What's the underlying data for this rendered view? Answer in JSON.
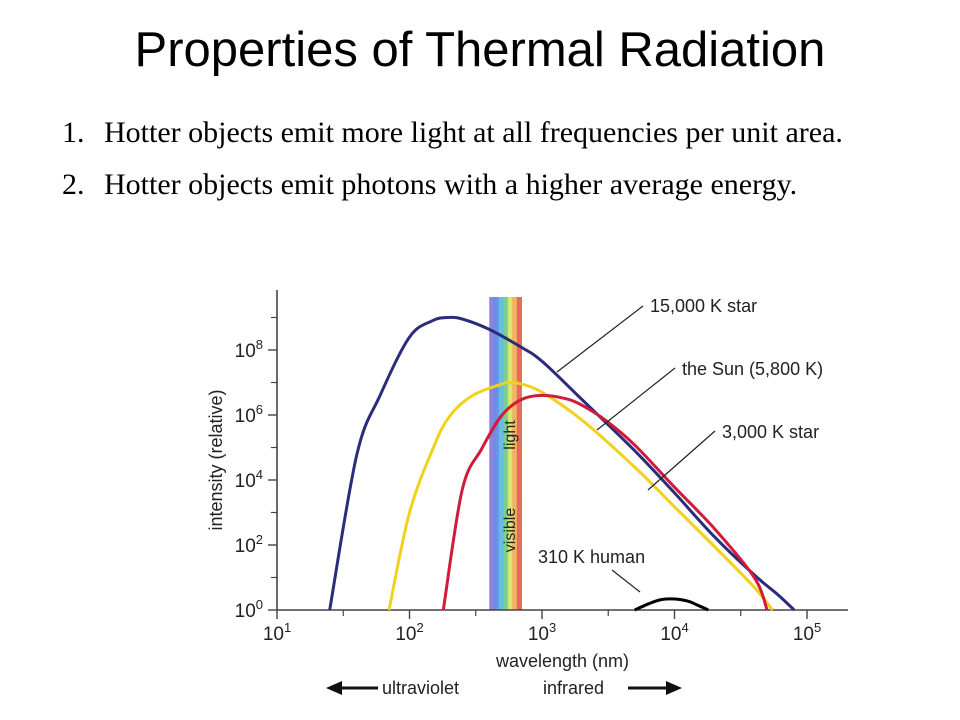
{
  "slide": {
    "title": "Properties of Thermal Radiation",
    "bullets": [
      {
        "number": "1.",
        "text": "Hotter objects emit more light at all frequencies per unit area."
      },
      {
        "number": "2.",
        "text": "Hotter objects emit photons with a higher average energy."
      }
    ]
  },
  "chart_data": {
    "type": "line",
    "xlabel": "wavelength (nm)",
    "ylabel": "intensity (relative)",
    "x_scale": "log",
    "y_scale": "log",
    "xlim": [
      10,
      150000
    ],
    "ylim": [
      1,
      10000000000
    ],
    "x_ticks": [
      {
        "base": "10",
        "exp": "1",
        "value": 10
      },
      {
        "base": "10",
        "exp": "2",
        "value": 100
      },
      {
        "base": "10",
        "exp": "3",
        "value": 1000
      },
      {
        "base": "10",
        "exp": "4",
        "value": 10000
      },
      {
        "base": "10",
        "exp": "5",
        "value": 100000
      }
    ],
    "y_ticks": [
      {
        "base": "10",
        "exp": "0",
        "value": 1
      },
      {
        "base": "10",
        "exp": "2",
        "value": 100
      },
      {
        "base": "10",
        "exp": "4",
        "value": 10000
      },
      {
        "base": "10",
        "exp": "6",
        "value": 1000000
      },
      {
        "base": "10",
        "exp": "8",
        "value": 100000000
      }
    ],
    "series": [
      {
        "name": "15,000 K star",
        "color": "#2b2c7c",
        "x": [
          25,
          40,
          60,
          100,
          150,
          193,
          250,
          400,
          700,
          1000,
          2000,
          5000,
          10000,
          20000,
          40000,
          60000,
          80000
        ],
        "y": [
          1,
          60000,
          4000000,
          250000000,
          800000000,
          1000000000,
          900000000,
          430000000,
          120000000,
          45000000,
          3000000,
          80000,
          4000,
          180,
          12,
          3,
          1
        ]
      },
      {
        "name": "the Sun (5,800 K)",
        "color": "#f0d21d",
        "x": [
          70,
          100,
          150,
          200,
          300,
          500,
          580,
          700,
          1000,
          2000,
          5000,
          10000,
          20000,
          40000,
          55000
        ],
        "y": [
          1,
          1000,
          90000,
          900000,
          4000000,
          9000000,
          10000000,
          9000000,
          5000000,
          700000,
          25000,
          1500,
          90,
          5,
          1
        ]
      },
      {
        "name": "3,000 K star",
        "color": "#d01b3a",
        "x": [
          180,
          250,
          350,
          500,
          700,
          1000,
          1500,
          2000,
          3000,
          5000,
          10000,
          20000,
          40000,
          50000
        ],
        "y": [
          1,
          5000,
          90000,
          1000000,
          3000000,
          4000000,
          3200000,
          2000000,
          700000,
          120000,
          6000,
          320,
          10,
          1
        ]
      },
      {
        "name": "310 K human",
        "color": "#000000",
        "x": [
          5000,
          6000,
          7000,
          8000,
          9300,
          11000,
          13000,
          15000,
          18000
        ],
        "y": [
          1,
          1.4,
          1.8,
          2.1,
          2.2,
          2.1,
          1.8,
          1.4,
          1
        ]
      }
    ],
    "visible_band": {
      "x_range": [
        400,
        700
      ],
      "label_top": "light",
      "label_bottom": "visible",
      "colors": [
        "#7b6fd6",
        "#4f80e8",
        "#4fb0e0",
        "#62c87a",
        "#d4e15a",
        "#f3a34f",
        "#e0553d"
      ]
    },
    "annotations": [
      {
        "text": "15,000 K star",
        "series": 0
      },
      {
        "text": "the Sun (5,800 K)",
        "series": 1
      },
      {
        "text": "3,000 K star",
        "series": 2
      },
      {
        "text": "310 K human",
        "series": 3
      }
    ],
    "arrows": {
      "left": "ultraviolet",
      "right": "infrared"
    }
  }
}
